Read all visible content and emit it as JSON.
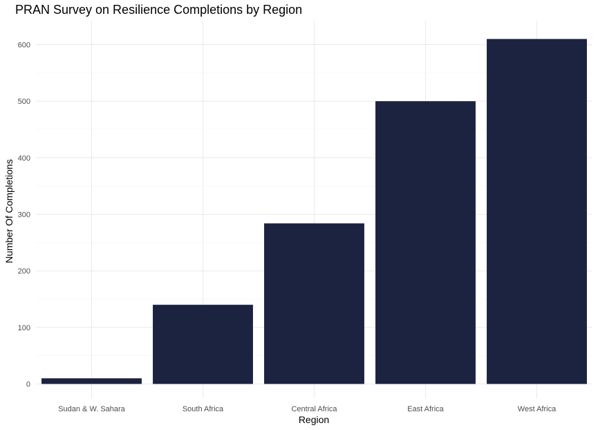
{
  "chart_data": {
    "type": "bar",
    "title": "PRAN Survey on Resilience Completions by Region",
    "xlabel": "Region",
    "ylabel": "Number Of Completions",
    "categories": [
      "Sudan & W. Sahara",
      "South Africa",
      "Central Africa",
      "East Africa",
      "West Africa"
    ],
    "values": [
      10,
      140,
      284,
      500,
      610
    ],
    "ylim": [
      0,
      630
    ],
    "yticks": [
      0,
      100,
      200,
      300,
      400,
      500,
      600
    ],
    "grid": true,
    "legend": "none",
    "bar_color": "#1b2340"
  }
}
